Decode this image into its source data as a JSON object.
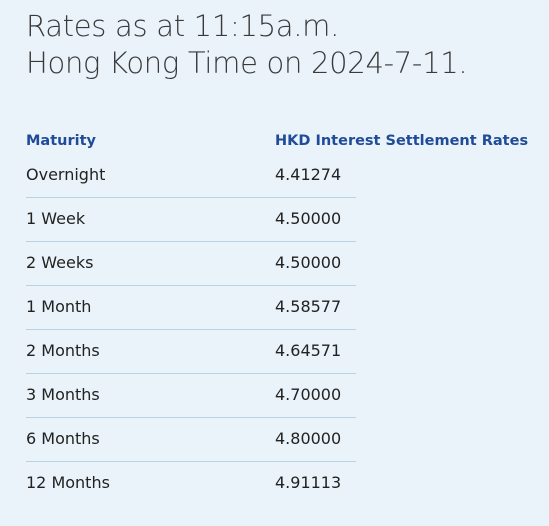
{
  "header": {
    "title_lines": [
      "Rates as at 11:15a.m.",
      "Hong Kong Time on 2024-7-11."
    ]
  },
  "table": {
    "columns": [
      "Maturity",
      "HKD Interest Settlement Rates"
    ],
    "rows": [
      [
        "Overnight",
        "4.41274"
      ],
      [
        "1 Week",
        "4.50000"
      ],
      [
        "2 Weeks",
        "4.50000"
      ],
      [
        "1 Month",
        "4.58577"
      ],
      [
        "2 Months",
        "4.64571"
      ],
      [
        "3 Months",
        "4.70000"
      ],
      [
        "6 Months",
        "4.80000"
      ],
      [
        "12 Months",
        "4.91113"
      ]
    ]
  }
}
